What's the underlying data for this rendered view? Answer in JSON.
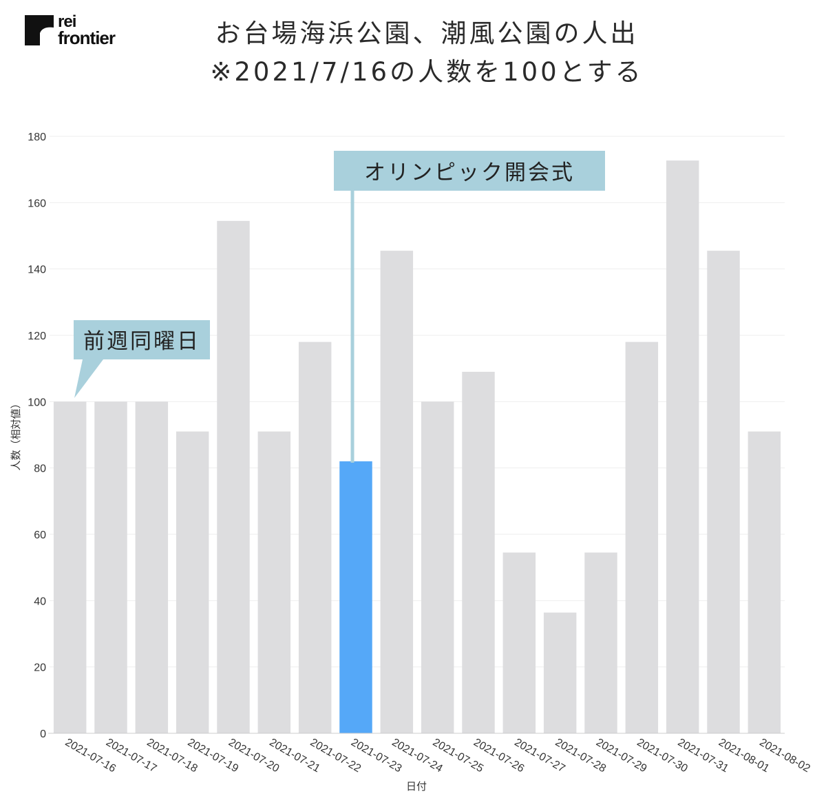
{
  "logo": {
    "line1": "rei",
    "line2": "frontier"
  },
  "title": {
    "line1": "お台場海浜公園、潮風公園の人出",
    "line2": "※2021/7/16の人数を100とする"
  },
  "colors": {
    "bar": "#dddddf",
    "highlight": "#55a8f8",
    "callout": "#a9d0dc",
    "grid": "#eeeeee"
  },
  "annotations": {
    "week_ago": "前週同曜日",
    "opening": "オリンピック開会式"
  },
  "chart_data": {
    "type": "bar",
    "xlabel": "日付",
    "ylabel": "人数（相対値）",
    "ylim": [
      0,
      180
    ],
    "yticks": [
      0,
      20,
      40,
      60,
      80,
      100,
      120,
      140,
      160,
      180
    ],
    "grid": true,
    "categories": [
      "2021-07-16",
      "2021-07-17",
      "2021-07-18",
      "2021-07-19",
      "2021-07-20",
      "2021-07-21",
      "2021-07-22",
      "2021-07-23",
      "2021-07-24",
      "2021-07-25",
      "2021-07-26",
      "2021-07-27",
      "2021-07-28",
      "2021-07-29",
      "2021-07-30",
      "2021-07-31",
      "2021-08-01",
      "2021-08-02"
    ],
    "values": [
      100,
      100,
      100,
      91,
      154.5,
      91,
      118,
      82,
      145.5,
      100,
      109,
      54.5,
      36.4,
      54.5,
      118,
      172.7,
      145.5,
      91
    ],
    "highlight_category": "2021-07-23"
  }
}
